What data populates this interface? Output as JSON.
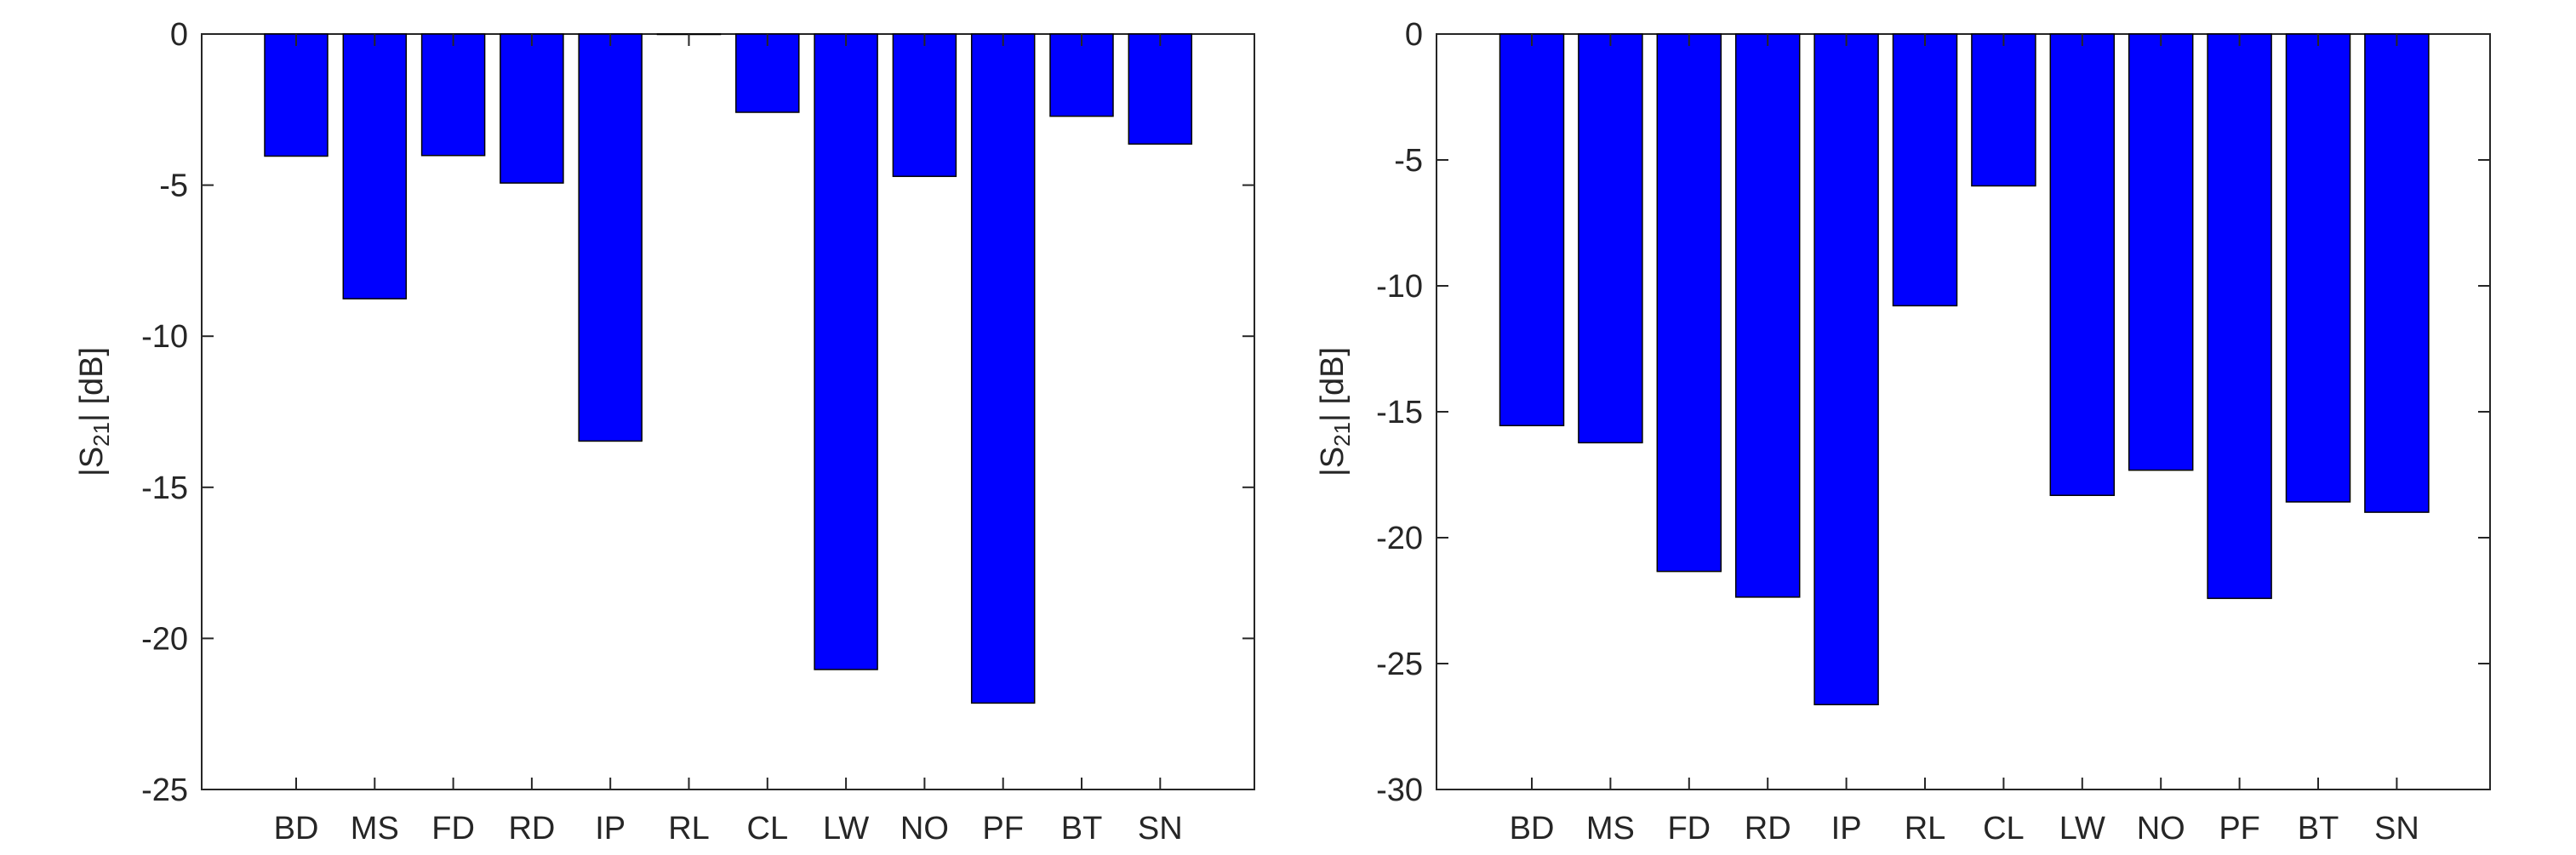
{
  "chart_data": [
    {
      "type": "bar",
      "title": "",
      "xlabel": "",
      "ylabel": "|S21| [dB]",
      "ylabel_parts": {
        "pre": "|S",
        "sub": "21",
        "post": "| [dB]"
      },
      "categories": [
        "BD",
        "MS",
        "FD",
        "RD",
        "IP",
        "RL",
        "CL",
        "LW",
        "NO",
        "PF",
        "BT",
        "SN"
      ],
      "values": [
        -4.04,
        -8.76,
        -4.02,
        -4.93,
        -13.47,
        0,
        -2.59,
        -21.03,
        -4.71,
        -22.14,
        -2.72,
        -3.64
      ],
      "ylim": [
        -25,
        0
      ],
      "yticks": [
        0,
        -5,
        -10,
        -15,
        -20,
        -25
      ],
      "ytick_labels": [
        "0",
        "-5",
        "-10",
        "-15",
        "-20",
        "-25"
      ],
      "bar_color": "#0000ff",
      "grid": false
    },
    {
      "type": "bar",
      "title": "",
      "xlabel": "",
      "ylabel": "|S21| [dB]",
      "ylabel_parts": {
        "pre": "|S",
        "sub": "21",
        "post": "| [dB]"
      },
      "categories": [
        "BD",
        "MS",
        "FD",
        "RD",
        "IP",
        "RL",
        "CL",
        "LW",
        "NO",
        "PF",
        "BT",
        "SN"
      ],
      "values": [
        -15.55,
        -16.23,
        -21.34,
        -22.36,
        -26.63,
        -10.79,
        -6.03,
        -18.32,
        -17.32,
        -22.41,
        -18.58,
        -18.99
      ],
      "ylim": [
        -30,
        0
      ],
      "yticks": [
        0,
        -5,
        -10,
        -15,
        -20,
        -25,
        -30
      ],
      "ytick_labels": [
        "0",
        "-5",
        "-10",
        "-15",
        "-20",
        "-25",
        "-30"
      ],
      "bar_color": "#0000ff",
      "grid": false
    }
  ]
}
